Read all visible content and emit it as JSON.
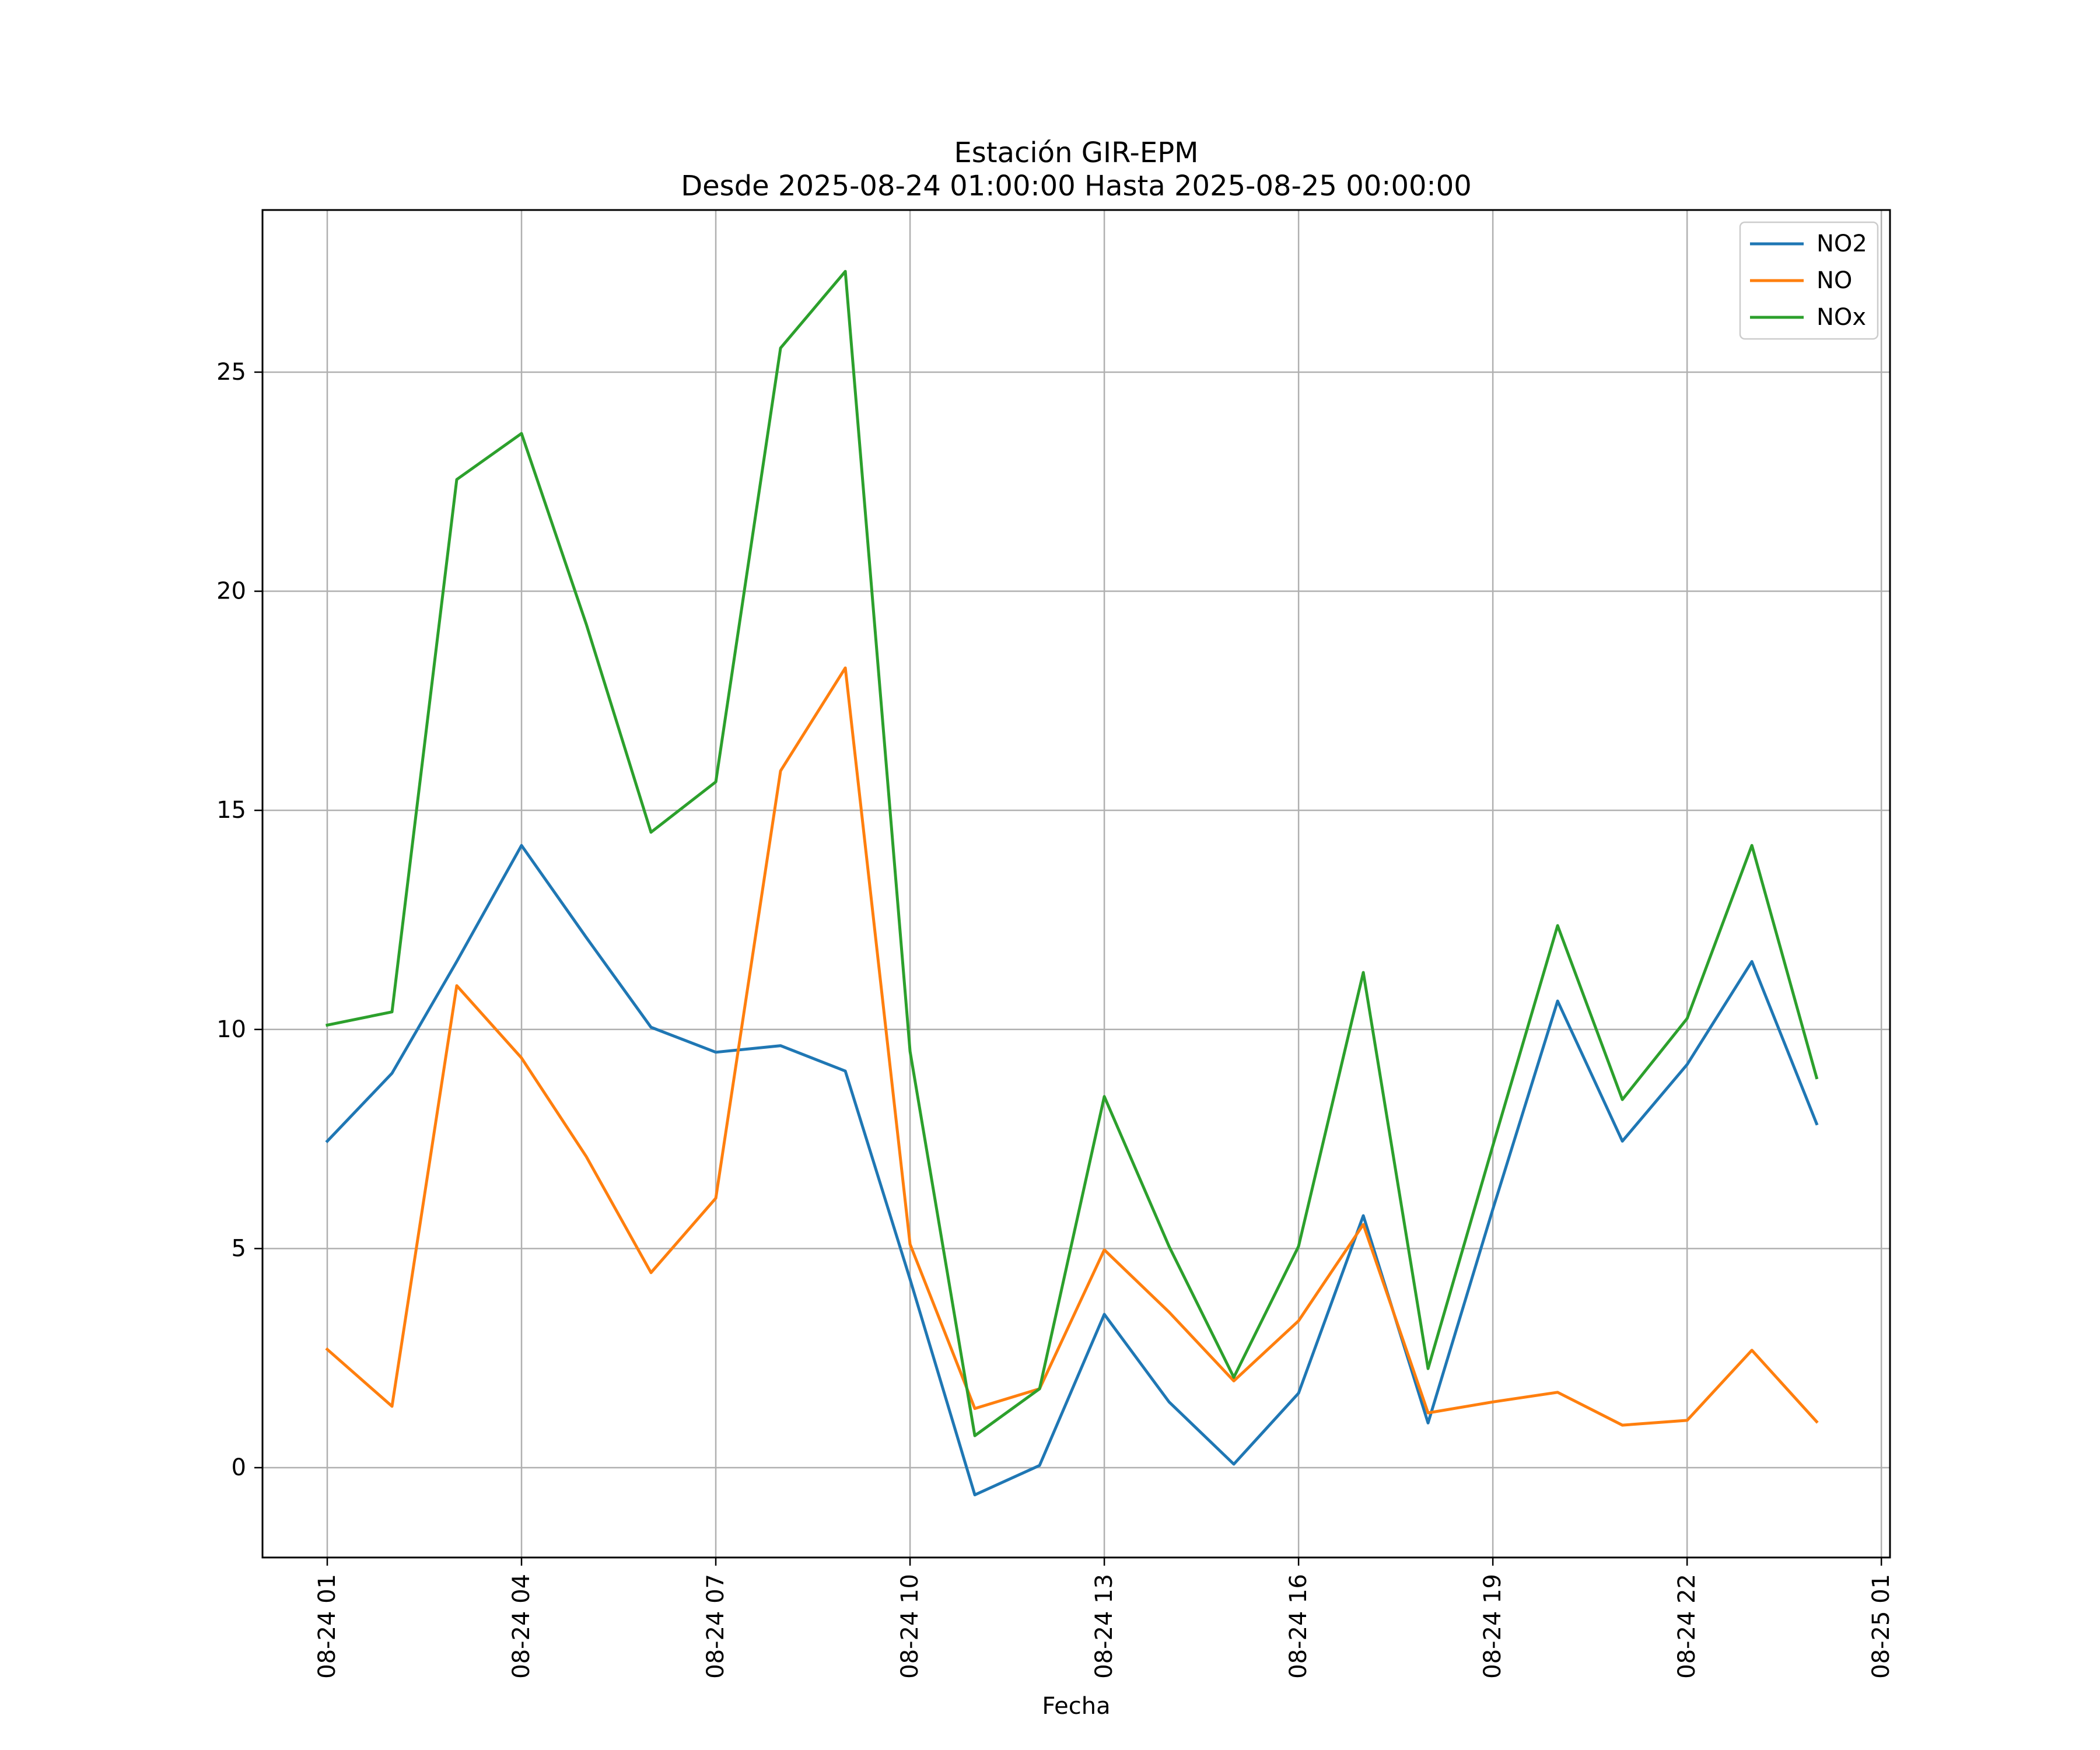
{
  "chart_data": {
    "type": "line",
    "title": "Estación GIR-EPM",
    "subtitle": "Desde 2025-08-24 01:00:00 Hasta 2025-08-25 00:00:00",
    "xlabel": "Fecha",
    "ylabel": "",
    "x": [
      "2025-08-24 01:00",
      "2025-08-24 02:00",
      "2025-08-24 03:00",
      "2025-08-24 04:00",
      "2025-08-24 05:00",
      "2025-08-24 06:00",
      "2025-08-24 07:00",
      "2025-08-24 08:00",
      "2025-08-24 09:00",
      "2025-08-24 10:00",
      "2025-08-24 11:00",
      "2025-08-24 12:00",
      "2025-08-24 13:00",
      "2025-08-24 14:00",
      "2025-08-24 15:00",
      "2025-08-24 16:00",
      "2025-08-24 17:00",
      "2025-08-24 18:00",
      "2025-08-24 19:00",
      "2025-08-24 20:00",
      "2025-08-24 21:00",
      "2025-08-24 22:00",
      "2025-08-24 23:00",
      "2025-08-25 00:00"
    ],
    "x_range": [
      "2025-08-24 00:00",
      "2025-08-25 01:08"
    ],
    "ylim": [
      -2.05,
      28.7
    ],
    "x_ticks": [
      {
        "value": "2025-08-24 01:00",
        "label": "08-24 01"
      },
      {
        "value": "2025-08-24 04:00",
        "label": "08-24 04"
      },
      {
        "value": "2025-08-24 07:00",
        "label": "08-24 07"
      },
      {
        "value": "2025-08-24 10:00",
        "label": "08-24 10"
      },
      {
        "value": "2025-08-24 13:00",
        "label": "08-24 13"
      },
      {
        "value": "2025-08-24 16:00",
        "label": "08-24 16"
      },
      {
        "value": "2025-08-24 19:00",
        "label": "08-24 19"
      },
      {
        "value": "2025-08-24 22:00",
        "label": "08-24 22"
      },
      {
        "value": "2025-08-25 01:00",
        "label": "08-25 01"
      }
    ],
    "y_ticks": [
      0,
      5,
      10,
      15,
      20,
      25
    ],
    "grid": true,
    "legend_position": "top-right",
    "series": [
      {
        "name": "NO2",
        "color": "#1f77b4",
        "values": [
          7.45,
          9.0,
          11.55,
          14.2,
          12.1,
          10.05,
          9.48,
          9.63,
          9.05,
          4.3,
          -0.62,
          0.05,
          3.5,
          1.5,
          0.08,
          1.7,
          5.75,
          1.02,
          5.9,
          10.65,
          7.45,
          9.2,
          11.55,
          7.85
        ]
      },
      {
        "name": "NO",
        "color": "#ff7f0e",
        "values": [
          2.7,
          1.4,
          11.0,
          9.35,
          7.1,
          4.45,
          6.15,
          15.9,
          18.25,
          5.1,
          1.35,
          1.8,
          4.97,
          3.55,
          1.98,
          3.35,
          5.55,
          1.25,
          1.5,
          1.72,
          0.97,
          1.08,
          2.68,
          1.05
        ]
      },
      {
        "name": "NOx",
        "color": "#2ca02c",
        "values": [
          10.1,
          10.4,
          22.55,
          23.6,
          19.25,
          14.5,
          15.65,
          25.55,
          27.3,
          9.5,
          0.73,
          1.8,
          8.47,
          5.05,
          2.06,
          5.05,
          11.3,
          2.26,
          7.35,
          12.37,
          8.4,
          10.25,
          14.2,
          8.9
        ]
      }
    ]
  }
}
